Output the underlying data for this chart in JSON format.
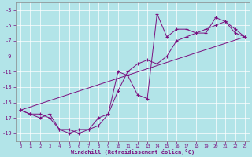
{
  "xlabel": "Windchill (Refroidissement éolien,°C)",
  "bg_color": "#b2e4e8",
  "line_color": "#7b1080",
  "ylim": [
    -20,
    -2
  ],
  "xlim": [
    -0.5,
    23.5
  ],
  "yticks": [
    -19,
    -17,
    -15,
    -13,
    -11,
    -9,
    -7,
    -5,
    -3
  ],
  "xticks": [
    0,
    1,
    2,
    3,
    4,
    5,
    6,
    7,
    8,
    9,
    10,
    11,
    12,
    13,
    14,
    15,
    16,
    17,
    18,
    19,
    20,
    21,
    22,
    23
  ],
  "series1_x": [
    0,
    1,
    2,
    3,
    4,
    5,
    6,
    7,
    8,
    9,
    10,
    11,
    12,
    13,
    14,
    15,
    16,
    17,
    18,
    19,
    20,
    21,
    22,
    23
  ],
  "series1_y": [
    -16.0,
    -16.5,
    -17.0,
    -16.5,
    -18.5,
    -19.0,
    -18.5,
    -18.5,
    -18.0,
    -16.5,
    -11.0,
    -11.5,
    -14.0,
    -14.5,
    -3.5,
    -6.5,
    -5.5,
    -5.5,
    -6.0,
    -6.0,
    -4.0,
    -4.5,
    -6.0,
    -6.5
  ],
  "series2_x": [
    0,
    1,
    2,
    3,
    4,
    5,
    6,
    7,
    8,
    9,
    10,
    11,
    12,
    13,
    14,
    15,
    16,
    17,
    18,
    19,
    20,
    21,
    22,
    23
  ],
  "series2_y": [
    -16.0,
    -16.5,
    -16.5,
    -17.0,
    -18.5,
    -18.5,
    -19.0,
    -18.5,
    -17.0,
    -16.5,
    -13.5,
    -11.0,
    -10.0,
    -9.5,
    -10.0,
    -9.0,
    -7.0,
    -6.5,
    -6.0,
    -5.5,
    -5.0,
    -4.5,
    -5.5,
    -6.5
  ],
  "series3_x": [
    0,
    23
  ],
  "series3_y": [
    -16.0,
    -6.5
  ]
}
